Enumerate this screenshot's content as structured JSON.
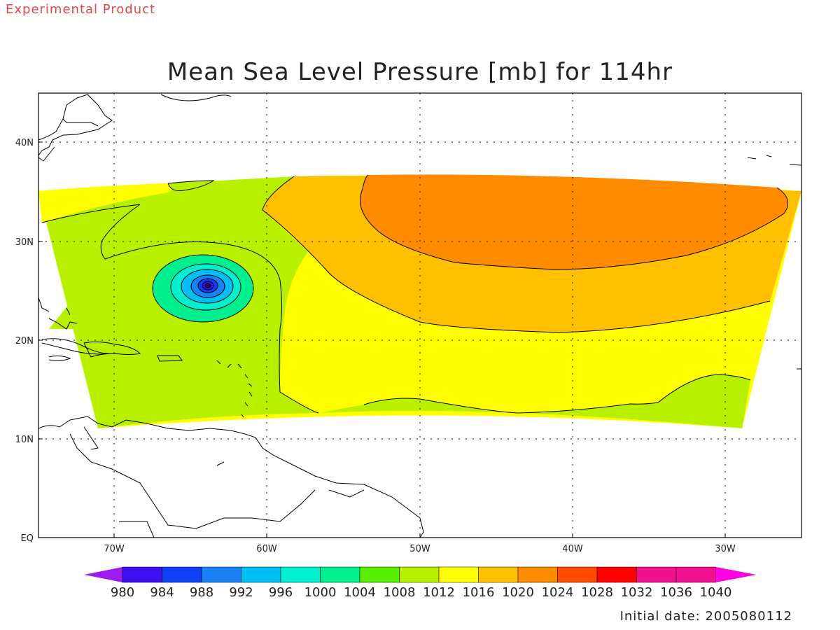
{
  "header": {
    "experimental_label": "Experimental Product",
    "title": "Mean Sea Level Pressure [mb] for 114hr"
  },
  "footer": {
    "initial_date": "Initial date: 2005080112"
  },
  "map": {
    "lon_ticks": [
      "70W",
      "60W",
      "50W",
      "40W",
      "30W"
    ],
    "lat_ticks": [
      "EQ",
      "10N",
      "20N",
      "30N",
      "40N"
    ],
    "gridlines": "dotted",
    "outline_color": "#000000"
  },
  "colorbar": {
    "labels": [
      "980",
      "984",
      "988",
      "992",
      "996",
      "1000",
      "1004",
      "1008",
      "1012",
      "1016",
      "1020",
      "1024",
      "1028",
      "1032",
      "1036",
      "1040"
    ],
    "colors": [
      "#9b1bf0",
      "#3a0ff0",
      "#1040f5",
      "#1a80f5",
      "#00bff5",
      "#00f0d0",
      "#00f090",
      "#58f000",
      "#b8f000",
      "#ffff00",
      "#ffc000",
      "#ff8c00",
      "#ff4a00",
      "#ff0000",
      "#f0108c",
      "#f01090",
      "#ff00e0"
    ]
  },
  "pressure_field": {
    "units": "mb",
    "forecast_hour": "114hr",
    "cyclone_center": {
      "lon": -64,
      "lat": 25.5
    },
    "high_center": {
      "lon": -41,
      "lat": 32
    }
  }
}
